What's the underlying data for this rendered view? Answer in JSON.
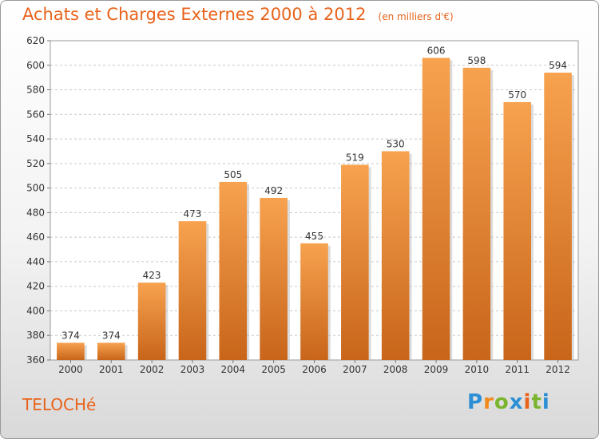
{
  "chart_data": {
    "type": "bar",
    "title": "Achats et Charges Externes 2000 à 2012",
    "unit_note": "(en milliers d'€)",
    "categories": [
      "2000",
      "2001",
      "2002",
      "2003",
      "2004",
      "2005",
      "2006",
      "2007",
      "2008",
      "2009",
      "2010",
      "2011",
      "2012"
    ],
    "values": [
      374,
      374,
      423,
      473,
      505,
      492,
      455,
      519,
      530,
      606,
      598,
      570,
      594
    ],
    "ylim": [
      360,
      620
    ],
    "yticks": [
      360,
      380,
      400,
      420,
      440,
      460,
      480,
      500,
      520,
      540,
      560,
      580,
      600,
      620
    ],
    "grid": true,
    "legend": "none",
    "colors": {
      "bar_top": "#f7a24f",
      "bar_bottom": "#c8651a",
      "title": "#e8631b"
    }
  },
  "place_name": "TELOCHé",
  "logo": {
    "letters": [
      "P",
      "r",
      "o",
      "x",
      "i",
      "t",
      "i"
    ],
    "colors": [
      "#2c8fd6",
      "#f08a1c",
      "#7ab52f",
      "#2c8fd6",
      "#e8631b",
      "#7ab52f",
      "#2c8fd6"
    ]
  }
}
